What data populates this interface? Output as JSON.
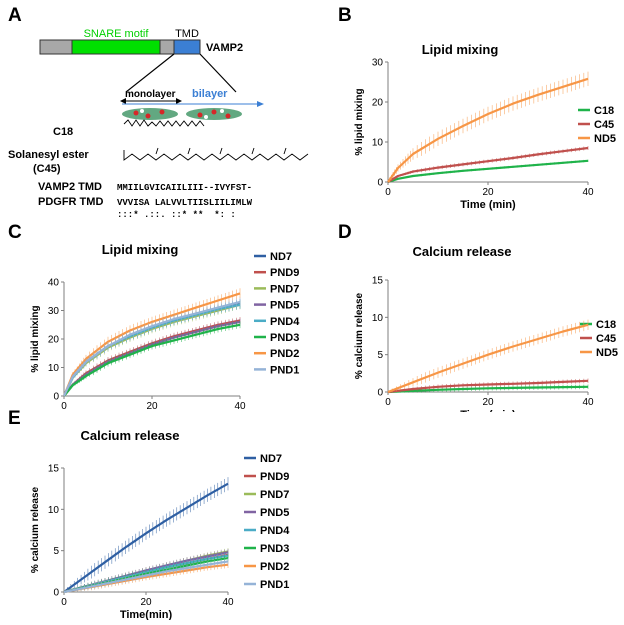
{
  "panels": {
    "A": {
      "letter": "A",
      "domains": {
        "snare": "SNARE motif",
        "tmd": "TMD",
        "protein": "VAMP2"
      },
      "membrane": {
        "monolayer": "monolayer",
        "bilayer": "bilayer"
      },
      "lipids": {
        "c18": "C18",
        "c45_line1": "Solanesyl ester",
        "c45_line2": "(C45)"
      },
      "sequences": {
        "vamp2_label": "VAMP2 TMD",
        "vamp2_seq": "MMIILGVICAIILIII--IVYFST-",
        "pdgfr_label": "PDGFR TMD",
        "pdgfr_seq": "VVVISA LALVVLTIISLIILIMLW",
        "consensus": ":::* .::. ::* **  *: :"
      },
      "colors": {
        "snare": "#00e000",
        "tmd": "#3b7fd4",
        "linker": "#a8a8a8"
      }
    },
    "B": {
      "letter": "B"
    },
    "C": {
      "letter": "C"
    },
    "D": {
      "letter": "D"
    },
    "E": {
      "letter": "E"
    }
  },
  "chart_data": [
    {
      "id": "B",
      "type": "line",
      "title": "Lipid mixing",
      "xlabel": "Time (min)",
      "ylabel": "% lipid  mixing",
      "xlim": [
        0,
        40
      ],
      "ylim": [
        0,
        30
      ],
      "xticks": [
        0,
        20,
        40
      ],
      "yticks": [
        0,
        10,
        20,
        30
      ],
      "series": [
        {
          "name": "C18",
          "color": "#1fb34a",
          "x": [
            0,
            2,
            5,
            10,
            15,
            20,
            25,
            30,
            35,
            40
          ],
          "y": [
            0,
            0.8,
            1.5,
            2.2,
            2.8,
            3.3,
            3.8,
            4.3,
            4.8,
            5.3
          ],
          "err": 0.3
        },
        {
          "name": "C45",
          "color": "#c0504d",
          "x": [
            0,
            2,
            5,
            10,
            15,
            20,
            25,
            30,
            35,
            40
          ],
          "y": [
            0,
            1.5,
            2.6,
            3.6,
            4.4,
            5.2,
            6.0,
            6.9,
            7.7,
            8.5
          ],
          "err": 0.5
        },
        {
          "name": "ND5",
          "color": "#f79646",
          "x": [
            0,
            2,
            5,
            10,
            15,
            20,
            25,
            30,
            35,
            40
          ],
          "y": [
            0,
            3.5,
            7.0,
            10.8,
            14.0,
            17.0,
            19.6,
            21.8,
            23.8,
            25.8
          ],
          "err": 1.8
        }
      ]
    },
    {
      "id": "C",
      "type": "line",
      "title": "Lipid mixing",
      "xlabel": "Time(min)",
      "ylabel": "% lipid  mixing",
      "xlim": [
        0,
        40
      ],
      "ylim": [
        0,
        40
      ],
      "xticks": [
        0,
        20,
        40
      ],
      "yticks": [
        0,
        10,
        20,
        30,
        40
      ],
      "series": [
        {
          "name": "ND7",
          "color": "#2e5fa3",
          "x": [
            0,
            2,
            5,
            10,
            15,
            20,
            25,
            30,
            35,
            40
          ],
          "y": [
            0,
            7,
            12,
            17.5,
            21,
            24,
            26.5,
            28.5,
            30.5,
            32.5
          ],
          "err": 1.5
        },
        {
          "name": "PND9",
          "color": "#c0504d",
          "x": [
            0,
            2,
            5,
            10,
            15,
            20,
            25,
            30,
            35,
            40
          ],
          "y": [
            0,
            4,
            8,
            12.5,
            15.5,
            18.5,
            21,
            23,
            25,
            26.5
          ],
          "err": 1.2
        },
        {
          "name": "PND7",
          "color": "#9bbb59",
          "x": [
            0,
            2,
            5,
            10,
            15,
            20,
            25,
            30,
            35,
            40
          ],
          "y": [
            0,
            6.5,
            11.5,
            17,
            20.5,
            23.5,
            26,
            28,
            30,
            32
          ],
          "err": 1.5
        },
        {
          "name": "PND5",
          "color": "#8064a2",
          "x": [
            0,
            2,
            5,
            10,
            15,
            20,
            25,
            30,
            35,
            40
          ],
          "y": [
            0,
            4,
            7.5,
            12,
            15,
            18,
            20.5,
            22.5,
            24.5,
            26
          ],
          "err": 1.2
        },
        {
          "name": "PND4",
          "color": "#4bacc6",
          "x": [
            0,
            2,
            5,
            10,
            15,
            20,
            25,
            30,
            35,
            40
          ],
          "y": [
            0,
            6.5,
            12,
            17.5,
            21,
            24,
            26.5,
            28.5,
            30.5,
            32
          ],
          "err": 1.5
        },
        {
          "name": "PND3",
          "color": "#1fb34a",
          "x": [
            0,
            2,
            5,
            10,
            15,
            20,
            25,
            30,
            35,
            40
          ],
          "y": [
            0,
            3.8,
            7,
            11.5,
            14.5,
            17.5,
            19.5,
            21.5,
            23.5,
            25
          ],
          "err": 1.2
        },
        {
          "name": "PND2",
          "color": "#f79646",
          "x": [
            0,
            2,
            5,
            10,
            15,
            20,
            25,
            30,
            35,
            40
          ],
          "y": [
            0,
            7.5,
            13,
            19,
            23,
            26,
            28.5,
            31,
            33.5,
            36
          ],
          "err": 1.8
        },
        {
          "name": "PND1",
          "color": "#95b3d7",
          "x": [
            0,
            2,
            5,
            10,
            15,
            20,
            25,
            30,
            35,
            40
          ],
          "y": [
            0,
            6.8,
            12,
            17.5,
            21.5,
            24.5,
            27,
            29,
            31,
            33
          ],
          "err": 1.5
        }
      ]
    },
    {
      "id": "D",
      "type": "line",
      "title": "Calcium release",
      "xlabel": "Time (min)",
      "ylabel": "% calcium  release",
      "xlim": [
        0,
        40
      ],
      "ylim": [
        0,
        15
      ],
      "xticks": [
        0,
        20,
        40
      ],
      "yticks": [
        0,
        5,
        10,
        15
      ],
      "series": [
        {
          "name": "C18",
          "color": "#1fb34a",
          "x": [
            0,
            5,
            10,
            15,
            20,
            25,
            30,
            35,
            40
          ],
          "y": [
            0,
            0.15,
            0.3,
            0.4,
            0.5,
            0.55,
            0.6,
            0.65,
            0.7
          ],
          "err": 0.3
        },
        {
          "name": "C45",
          "color": "#c0504d",
          "x": [
            0,
            5,
            10,
            15,
            20,
            25,
            30,
            35,
            40
          ],
          "y": [
            0,
            0.4,
            0.7,
            0.9,
            1.0,
            1.1,
            1.2,
            1.35,
            1.5
          ],
          "err": 0.3
        },
        {
          "name": "ND5",
          "color": "#f79646",
          "x": [
            0,
            5,
            10,
            15,
            20,
            25,
            30,
            35,
            40
          ],
          "y": [
            0,
            1.3,
            2.6,
            3.8,
            5.0,
            6.1,
            7.1,
            8.1,
            9.0
          ],
          "err": 0.7
        }
      ]
    },
    {
      "id": "E",
      "type": "line",
      "title": "Calcium release",
      "xlabel": "Time(min)",
      "ylabel": "% calcium release",
      "xlim": [
        0,
        40
      ],
      "ylim": [
        0,
        15
      ],
      "xticks": [
        0,
        20,
        40
      ],
      "yticks": [
        0,
        5,
        10,
        15
      ],
      "series": [
        {
          "name": "ND7",
          "color": "#2e5fa3",
          "x": [
            0,
            5,
            10,
            15,
            20,
            25,
            30,
            35,
            40
          ],
          "y": [
            0,
            1.8,
            3.6,
            5.4,
            7.1,
            8.7,
            10.2,
            11.7,
            13.1
          ],
          "err": 0.8
        },
        {
          "name": "PND9",
          "color": "#c0504d",
          "x": [
            0,
            5,
            10,
            15,
            20,
            25,
            30,
            35,
            40
          ],
          "y": [
            0,
            0.6,
            1.2,
            1.8,
            2.4,
            3.0,
            3.5,
            4.0,
            4.5
          ],
          "err": 0.4
        },
        {
          "name": "PND7",
          "color": "#9bbb59",
          "x": [
            0,
            5,
            10,
            15,
            20,
            25,
            30,
            35,
            40
          ],
          "y": [
            0,
            0.65,
            1.3,
            1.95,
            2.6,
            3.2,
            3.8,
            4.4,
            4.9
          ],
          "err": 0.4
        },
        {
          "name": "PND5",
          "color": "#8064a2",
          "x": [
            0,
            5,
            10,
            15,
            20,
            25,
            30,
            35,
            40
          ],
          "y": [
            0,
            0.65,
            1.3,
            1.95,
            2.6,
            3.2,
            3.8,
            4.3,
            4.8
          ],
          "err": 0.4
        },
        {
          "name": "PND4",
          "color": "#4bacc6",
          "x": [
            0,
            5,
            10,
            15,
            20,
            25,
            30,
            35,
            40
          ],
          "y": [
            0,
            0.6,
            1.2,
            1.8,
            2.4,
            3.0,
            3.5,
            4.0,
            4.4
          ],
          "err": 0.4
        },
        {
          "name": "PND3",
          "color": "#1fb34a",
          "x": [
            0,
            5,
            10,
            15,
            20,
            25,
            30,
            35,
            40
          ],
          "y": [
            0,
            0.55,
            1.1,
            1.65,
            2.2,
            2.7,
            3.2,
            3.7,
            4.1
          ],
          "err": 0.4
        },
        {
          "name": "PND2",
          "color": "#f79646",
          "x": [
            0,
            5,
            10,
            15,
            20,
            25,
            30,
            35,
            40
          ],
          "y": [
            0,
            0.45,
            0.9,
            1.35,
            1.8,
            2.2,
            2.6,
            3.0,
            3.3
          ],
          "err": 0.4
        },
        {
          "name": "PND1",
          "color": "#95b3d7",
          "x": [
            0,
            5,
            10,
            15,
            20,
            25,
            30,
            35,
            40
          ],
          "y": [
            0,
            0.5,
            1.0,
            1.5,
            2.0,
            2.5,
            2.9,
            3.3,
            3.7
          ],
          "err": 0.4
        }
      ]
    }
  ]
}
